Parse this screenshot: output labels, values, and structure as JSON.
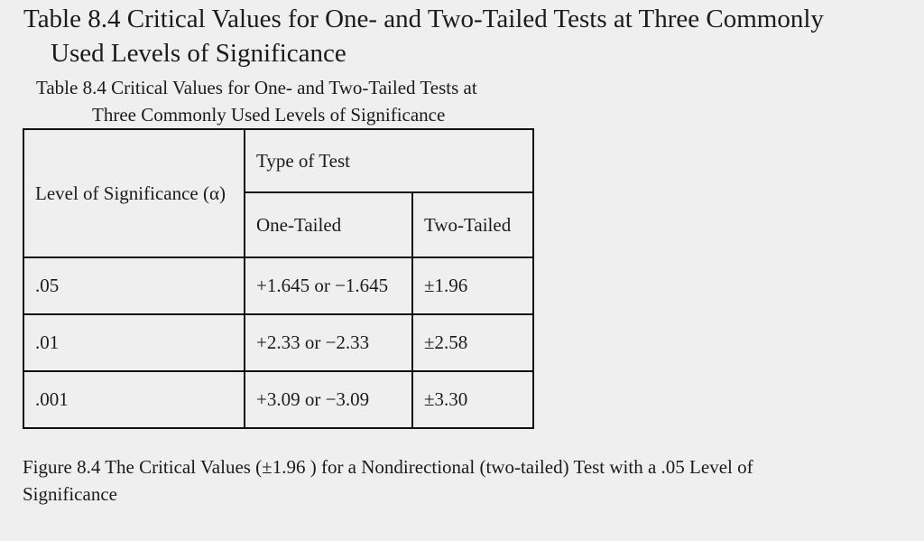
{
  "heading": {
    "line1": "Table 8.4 Critical Values for One- and Two-Tailed Tests at Three Commonly",
    "line2": "Used Levels of Significance"
  },
  "table_caption": {
    "line1": "Table 8.4 Critical Values for One- and Two-Tailed Tests at",
    "line2": "Three Commonly Used Levels of Significance"
  },
  "table": {
    "header_level": "Level of Significance (α)",
    "header_type": "Type of Test",
    "header_one_tailed": "One-Tailed",
    "header_two_tailed": "Two-Tailed",
    "rows": [
      {
        "level": ".05",
        "one_tailed": "+1.645 or −1.645",
        "two_tailed": "±1.96"
      },
      {
        "level": ".01",
        "one_tailed": "+2.33 or −2.33",
        "two_tailed": "±2.58"
      },
      {
        "level": ".001",
        "one_tailed": "+3.09 or −3.09",
        "two_tailed": "±3.30"
      }
    ]
  },
  "figure_caption": "Figure 8.4 The Critical Values (±1.96 ) for a Nondirectional (two-tailed) Test with a .05 Level of Significance"
}
